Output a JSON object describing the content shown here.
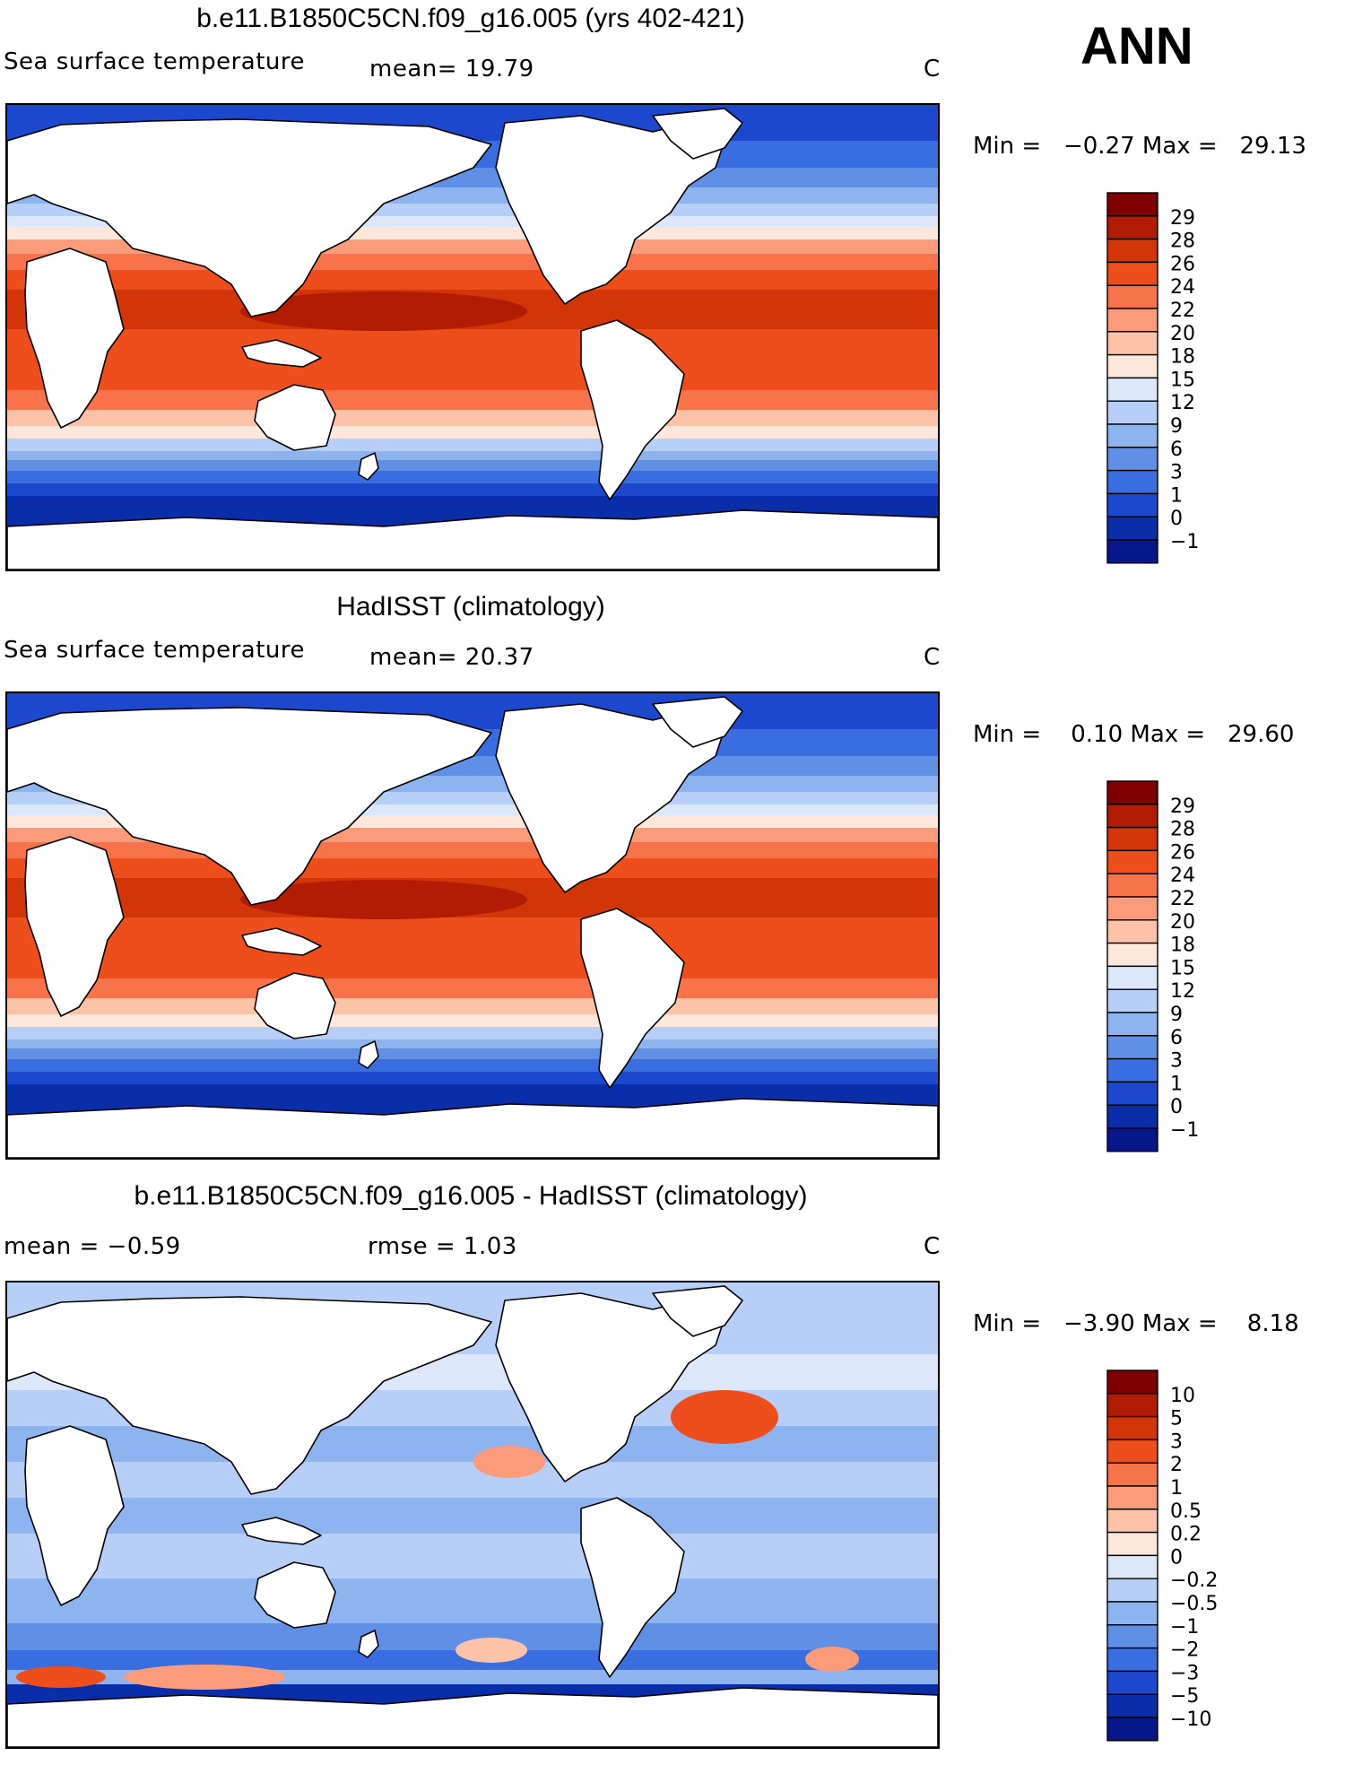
{
  "season": "ANN",
  "panels": [
    {
      "id": "model",
      "title": "b.e11.B1850C5CN.f09_g16.005 (yrs 402-421)",
      "left_label": "Sea surface temperature",
      "mid_label": "mean=   19.79",
      "units": "C",
      "min_max": "Min =   −0.27 Max =   29.13",
      "legend_labels": [
        "29",
        "28",
        "26",
        "24",
        "22",
        "20",
        "18",
        "15",
        "12",
        "9",
        "6",
        "3",
        "1",
        "0",
        "−1"
      ],
      "legend_colors": [
        "#7f0000",
        "#b21c04",
        "#d23508",
        "#ee4e1c",
        "#f8734a",
        "#fb9b79",
        "#fdc3a8",
        "#fde6da",
        "#dce8fa",
        "#b7cff6",
        "#8eb4f0",
        "#5f90e6",
        "#3a6ee0",
        "#1c48ce",
        "#0a2eaa",
        "#06178a"
      ]
    },
    {
      "id": "obs",
      "title": "HadISST (climatology)",
      "left_label": "Sea surface temperature",
      "mid_label": "mean=   20.37",
      "units": "C",
      "min_max": "Min =    0.10 Max =   29.60",
      "legend_labels": [
        "29",
        "28",
        "26",
        "24",
        "22",
        "20",
        "18",
        "15",
        "12",
        "9",
        "6",
        "3",
        "1",
        "0",
        "−1"
      ],
      "legend_colors": [
        "#7f0000",
        "#b21c04",
        "#d23508",
        "#ee4e1c",
        "#f8734a",
        "#fb9b79",
        "#fdc3a8",
        "#fde6da",
        "#dce8fa",
        "#b7cff6",
        "#8eb4f0",
        "#5f90e6",
        "#3a6ee0",
        "#1c48ce",
        "#0a2eaa",
        "#06178a"
      ]
    },
    {
      "id": "diff",
      "title": "b.e11.B1850C5CN.f09_g16.005 - HadISST (climatology)",
      "left_label": "mean =   −0.59",
      "mid_label": "rmse =    1.03",
      "units": "C",
      "min_max": "Min =   −3.90 Max =    8.18",
      "legend_labels": [
        "10",
        "5",
        "3",
        "2",
        "1",
        "0.5",
        "0.2",
        "0",
        "−0.2",
        "−0.5",
        "−1",
        "−2",
        "−3",
        "−5",
        "−10"
      ],
      "legend_colors": [
        "#7f0000",
        "#b21c04",
        "#d23508",
        "#ee4e1c",
        "#f8734a",
        "#fb9b79",
        "#fdc3a8",
        "#fde6da",
        "#dce8fa",
        "#b7cff6",
        "#8eb4f0",
        "#5f90e6",
        "#3a6ee0",
        "#1c48ce",
        "#0a2eaa",
        "#06178a"
      ]
    }
  ]
}
